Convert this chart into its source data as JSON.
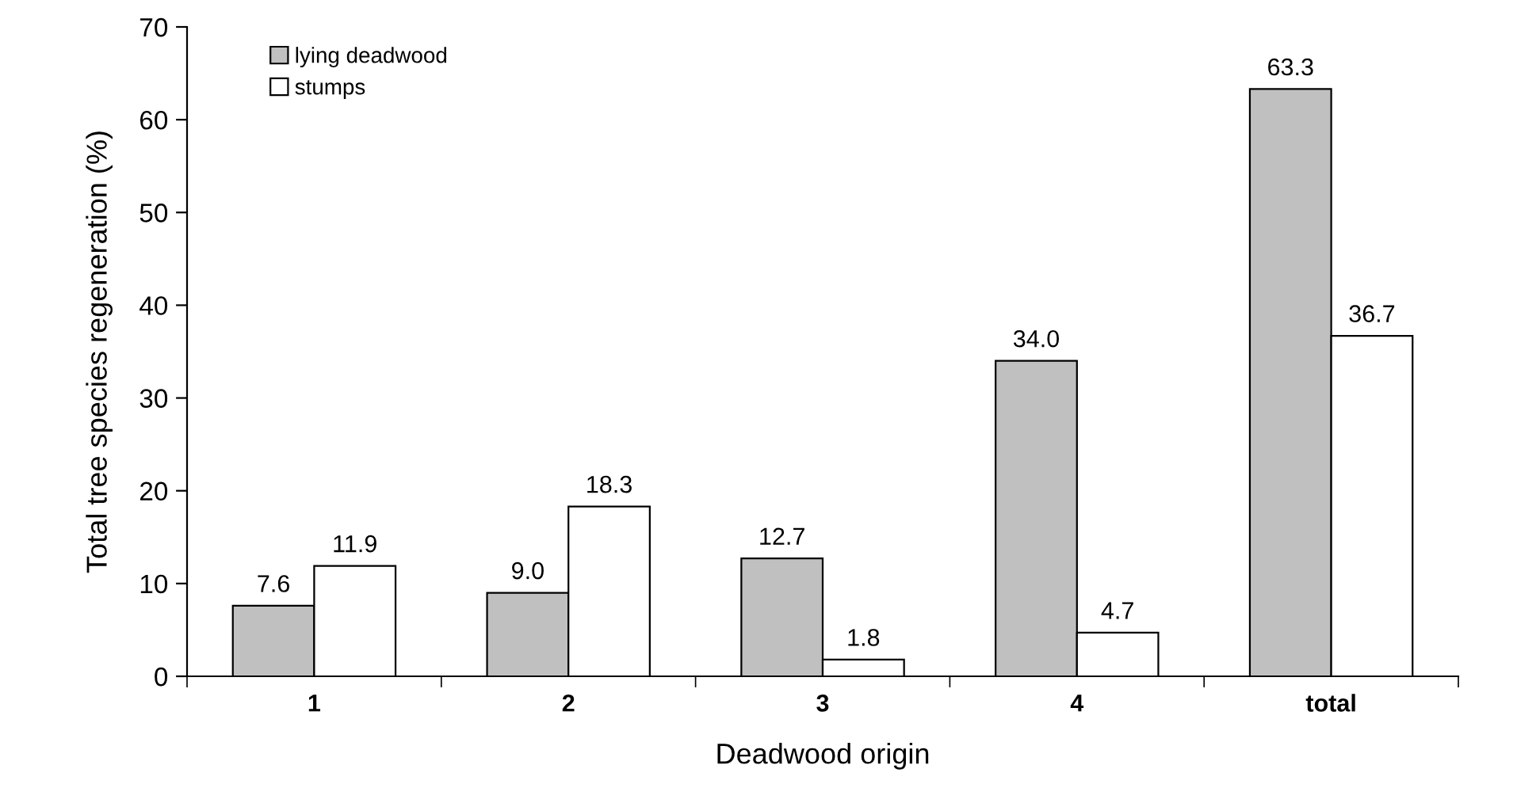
{
  "chart_data": {
    "type": "bar",
    "xlabel": "Deadwood origin",
    "ylabel": "Total tree species regeneration (%)",
    "categories": [
      "1",
      "2",
      "3",
      "4",
      "total"
    ],
    "series": [
      {
        "name": "lying deadwood",
        "color": "#c0c0c0",
        "values": [
          7.6,
          9.0,
          12.7,
          34.0,
          63.3
        ],
        "value_labels": [
          "7.6",
          "9.0",
          "12.7",
          "34.0",
          "63.3"
        ]
      },
      {
        "name": "stumps",
        "color": "#ffffff",
        "values": [
          11.9,
          18.3,
          1.8,
          4.7,
          36.7
        ],
        "value_labels": [
          "11.9",
          "18.3",
          "1.8",
          "4.7",
          "36.7"
        ]
      }
    ],
    "ylim": [
      0,
      70
    ],
    "yticks": [
      0,
      10,
      20,
      30,
      40,
      50,
      60,
      70
    ],
    "grid": false,
    "legend": "top left"
  }
}
